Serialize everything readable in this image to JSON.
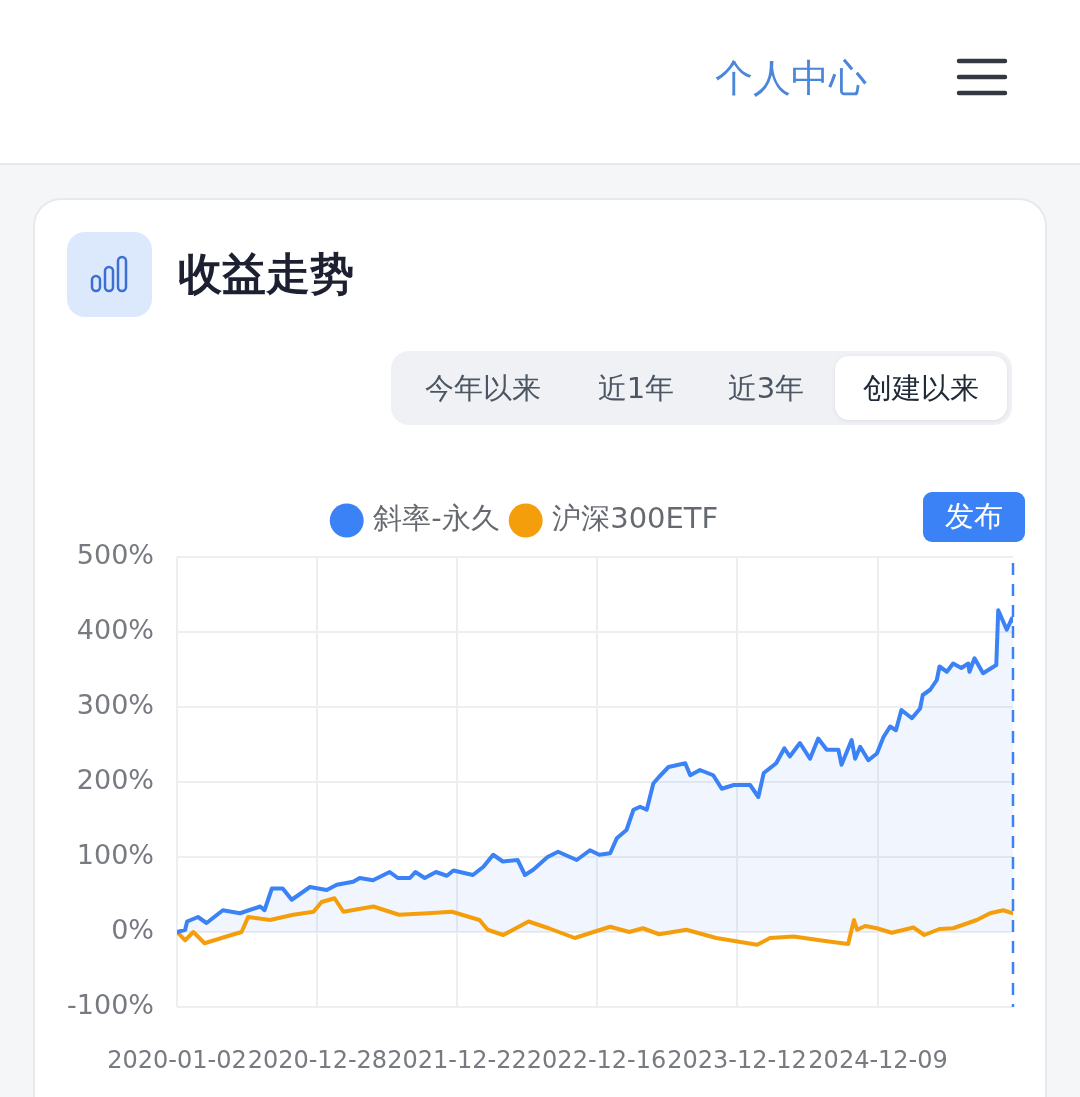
{
  "chart_data": {
    "type": "line",
    "title": "收益走势",
    "series": [
      {
        "name": "斜率-永久",
        "type": "area",
        "color": "#3b82f6",
        "x": [
          "2020-01-02",
          "2020-01-23",
          "2020-01-28",
          "2020-02-25",
          "2020-03-18",
          "2020-04-29",
          "2020-06-12",
          "2020-08-03",
          "2020-08-14",
          "2020-09-02",
          "2020-09-30",
          "2020-10-23",
          "2020-12-09",
          "2021-01-21",
          "2021-02-16",
          "2021-03-30",
          "2021-04-16",
          "2021-05-20",
          "2021-07-02",
          "2021-07-23",
          "2021-08-23",
          "2021-09-06",
          "2021-09-30",
          "2021-10-29",
          "2021-11-26",
          "2021-12-13",
          "2022-02-01",
          "2022-02-28",
          "2022-03-25",
          "2022-04-19",
          "2022-05-27",
          "2022-06-15",
          "2022-07-06",
          "2022-08-12",
          "2022-09-08",
          "2022-10-26",
          "2022-11-29",
          "2022-12-23",
          "2023-01-20",
          "2023-02-06",
          "2023-03-03",
          "2023-03-21",
          "2023-04-07",
          "2023-04-24",
          "2023-05-11",
          "2023-05-26",
          "2023-06-19",
          "2023-08-01",
          "2023-08-14",
          "2023-09-08",
          "2023-10-12",
          "2023-11-03",
          "2023-12-04",
          "2024-01-15",
          "2024-02-05",
          "2024-02-19",
          "2024-03-22",
          "2024-04-12",
          "2024-04-26",
          "2024-05-22",
          "2024-06-17",
          "2024-07-08",
          "2024-07-30",
          "2024-08-29",
          "2024-09-06",
          "2024-10-02",
          "2024-10-11",
          "2024-10-24",
          "2024-11-14",
          "2024-12-06",
          "2024-12-23",
          "2025-01-09",
          "2025-01-24",
          "2025-02-07",
          "2025-03-06",
          "2025-03-27",
          "2025-04-03",
          "2025-04-22",
          "2025-05-09",
          "2025-05-16",
          "2025-06-04",
          "2025-06-20",
          "2025-07-11",
          "2025-07-29",
          "2025-08-01",
          "2025-08-14",
          "2025-09-05",
          "2025-10-09",
          "2025-10-14",
          "2025-11-05",
          "2025-11-18",
          "2025-11-21"
        ],
        "values": [
          0,
          3,
          14,
          20,
          12,
          29,
          25,
          34,
          29,
          58,
          58,
          43,
          60,
          56,
          63,
          67,
          72,
          69,
          80,
          72,
          72,
          80,
          72,
          80,
          75,
          82,
          76,
          87,
          103,
          94,
          96,
          76,
          83,
          100,
          107,
          96,
          109,
          103,
          105,
          125,
          136,
          163,
          167,
          163,
          198,
          207,
          220,
          225,
          209,
          216,
          209,
          191,
          196,
          196,
          180,
          212,
          225,
          245,
          234,
          252,
          231,
          258,
          243,
          243,
          223,
          256,
          231,
          247,
          229,
          238,
          260,
          274,
          269,
          296,
          285,
          298,
          316,
          323,
          336,
          354,
          347,
          358,
          352,
          358,
          347,
          365,
          345,
          356,
          429,
          403,
          418,
          415
        ]
      },
      {
        "name": "沪深300ETF",
        "type": "line",
        "color": "#f59e0b",
        "x": [
          "2020-01-02",
          "2020-01-23",
          "2020-02-13",
          "2020-03-13",
          "2020-05-08",
          "2020-06-16",
          "2020-07-03",
          "2020-08-28",
          "2020-10-27",
          "2020-12-18",
          "2021-01-08",
          "2021-02-10",
          "2021-03-05",
          "2021-05-21",
          "2021-07-26",
          "2021-10-08",
          "2021-12-09",
          "2022-02-18",
          "2022-03-11",
          "2022-04-20",
          "2022-06-24",
          "2022-08-15",
          "2022-10-21",
          "2022-12-08",
          "2023-01-20",
          "2023-03-10",
          "2023-04-14",
          "2023-05-26",
          "2023-08-04",
          "2023-10-20",
          "2024-02-02",
          "2024-03-06",
          "2024-05-06",
          "2024-07-12",
          "2024-09-23",
          "2024-10-08",
          "2024-10-16",
          "2024-11-06",
          "2024-12-06",
          "2025-01-13",
          "2025-03-10",
          "2025-04-07",
          "2025-05-16",
          "2025-06-20",
          "2025-08-20",
          "2025-09-23",
          "2025-10-27",
          "2025-11-21"
        ],
        "values": [
          0,
          -11,
          0,
          -15,
          -6,
          0,
          20,
          16,
          23,
          27,
          40,
          45,
          27,
          34,
          23,
          25,
          27,
          16,
          3,
          -4,
          14,
          5,
          -8,
          0,
          7,
          0,
          5,
          -3,
          3,
          -8,
          -17,
          -8,
          -6,
          -11,
          -16,
          16,
          3,
          8,
          5,
          -1,
          6,
          -4,
          4,
          5,
          16,
          25,
          29,
          25
        ]
      }
    ],
    "xlim": [
      "2020-01-02",
      "2025-11-21"
    ],
    "xticks": [
      "2020-01-02",
      "2020-12-28",
      "2021-12-22",
      "2022-12-16",
      "2023-12-12",
      "2024-12-09"
    ],
    "ylim": [
      -100,
      500
    ],
    "yticks": [
      {
        "value": -100,
        "label": "-100%"
      },
      {
        "value": 0,
        "label": "0%"
      },
      {
        "value": 100,
        "label": "100%"
      },
      {
        "value": 200,
        "label": "200%"
      },
      {
        "value": 300,
        "label": "300%"
      },
      {
        "value": 400,
        "label": "400%"
      },
      {
        "value": 500,
        "label": "500%"
      }
    ],
    "grid": true,
    "legend": "top",
    "ref_lines": [
      {
        "axis": "x",
        "value": "2025-11-21",
        "label": "发布",
        "color": "#3b82f6",
        "line_style": "dashed"
      }
    ],
    "annotations": [
      "个人中心",
      "今年以来",
      "近1年",
      "近3年",
      "创建以来"
    ]
  }
}
